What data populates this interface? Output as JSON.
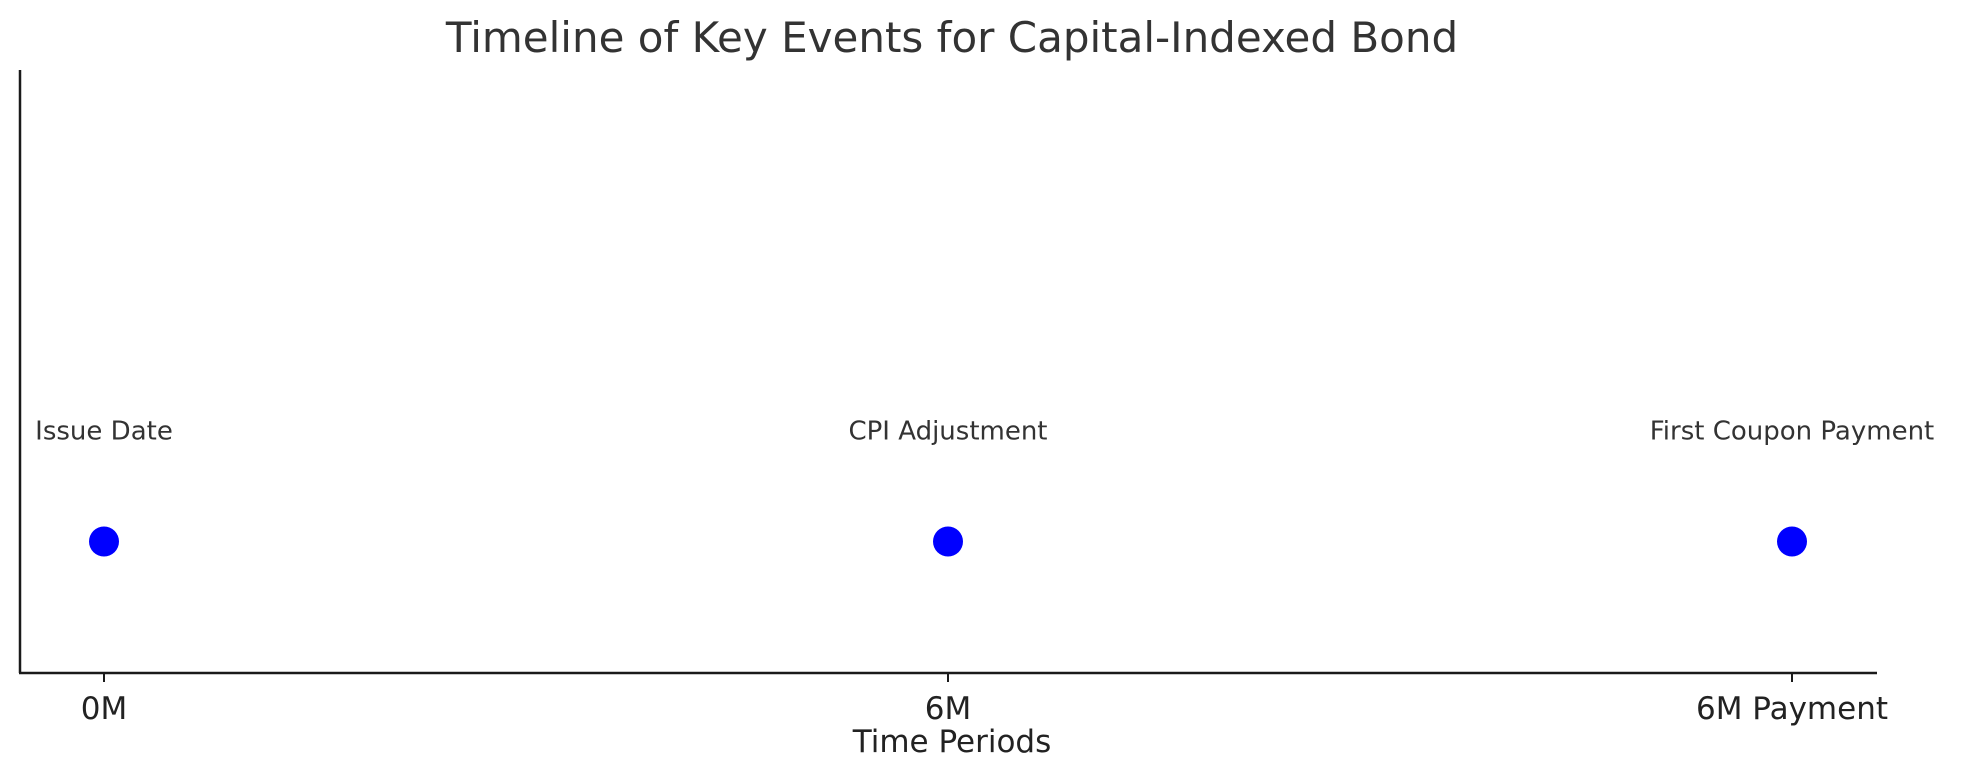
{
  "chart_data": {
    "type": "scatter",
    "title": "Timeline of Key Events for Capital-Indexed Bond",
    "xlabel": "Time Periods",
    "ylabel": "",
    "categories": [
      "0M",
      "6M",
      "6M Payment"
    ],
    "series": [
      {
        "values": [
          1,
          1,
          1
        ],
        "annotations": [
          "Issue Date",
          "CPI Adjustment",
          "First Coupon Payment"
        ]
      }
    ],
    "ylim": [
      0,
      2
    ],
    "grid": false,
    "legend": "none",
    "marker_color": "#0000ff",
    "spines": [
      "left",
      "bottom"
    ]
  }
}
